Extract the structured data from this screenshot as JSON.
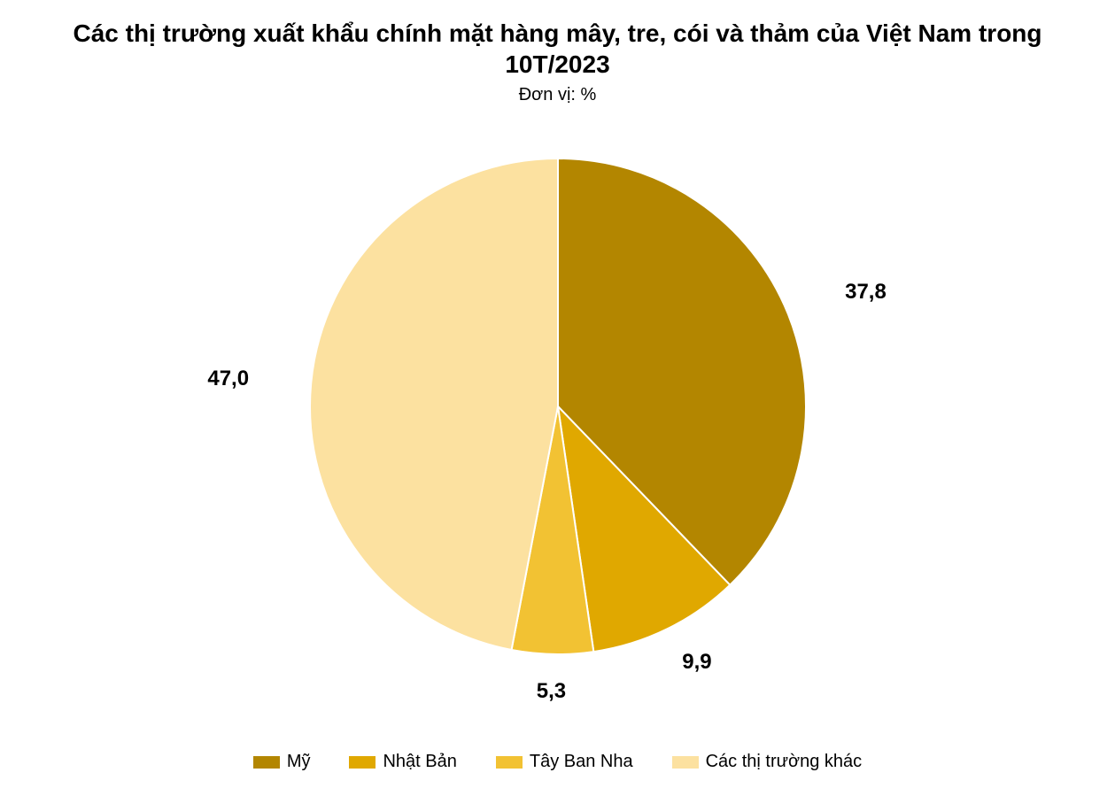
{
  "chart": {
    "type": "pie",
    "title": "Các thị trường xuất khẩu chính mặt hàng mây, tre, cói và thảm của Việt Nam trong 10T/2023",
    "title_fontsize": 28,
    "title_fontweight": "700",
    "title_color": "#000000",
    "subtitle": "Đơn vị: %",
    "subtitle_fontsize": 20,
    "subtitle_color": "#000000",
    "background_color": "#ffffff",
    "pie_radius": 280,
    "start_angle_deg": 0,
    "slice_border_color": "#ffffff",
    "slice_border_width": 2,
    "series": [
      {
        "label": "Mỹ",
        "value": 37.8,
        "color": "#b38600",
        "display": "37,8"
      },
      {
        "label": "Nhật Bản",
        "value": 9.9,
        "color": "#e0a800",
        "display": "9,9"
      },
      {
        "label": "Tây Ban Nha",
        "value": 5.3,
        "color": "#f2c233",
        "display": "5,3"
      },
      {
        "label": "Các thị trường khác",
        "value": 47.0,
        "color": "#fce1a0",
        "display": "47,0"
      }
    ],
    "data_label_fontsize": 24,
    "data_label_fontweight": "700",
    "data_label_color": "#000000",
    "legend_fontsize": 20,
    "legend_color": "#000000"
  }
}
